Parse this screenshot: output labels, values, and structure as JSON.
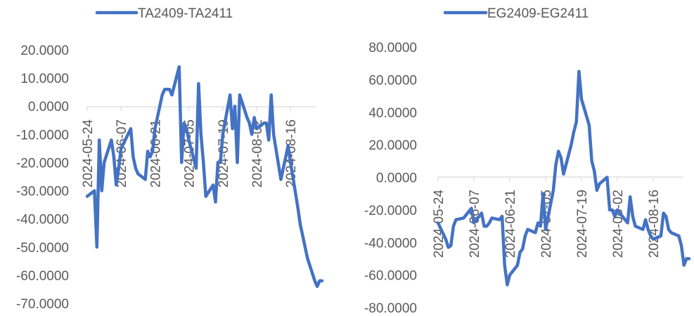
{
  "chart_data": [
    {
      "type": "line",
      "series": [
        {
          "name": "TA2409-TA2411",
          "color": "#4472C4",
          "points": [
            [
              "2024-05-24",
              -32
            ],
            [
              "2024-05-27",
              -30
            ],
            [
              "2024-05-28",
              -50
            ],
            [
              "2024-05-29",
              -12
            ],
            [
              "2024-05-30",
              -30
            ],
            [
              "2024-05-31",
              -20
            ],
            [
              "2024-06-03",
              -12
            ],
            [
              "2024-06-04",
              -18
            ],
            [
              "2024-06-05",
              -28
            ],
            [
              "2024-06-06",
              -22
            ],
            [
              "2024-06-07",
              -15
            ],
            [
              "2024-06-11",
              -8
            ],
            [
              "2024-06-12",
              -18
            ],
            [
              "2024-06-13",
              -22
            ],
            [
              "2024-06-14",
              -24
            ],
            [
              "2024-06-17",
              -26
            ],
            [
              "2024-06-18",
              -16
            ],
            [
              "2024-06-19",
              -18
            ],
            [
              "2024-06-20",
              -16
            ],
            [
              "2024-06-21",
              -8
            ],
            [
              "2024-06-24",
              4
            ],
            [
              "2024-06-25",
              6
            ],
            [
              "2024-06-26",
              6
            ],
            [
              "2024-06-27",
              6
            ],
            [
              "2024-06-28",
              4
            ],
            [
              "2024-07-01",
              14
            ],
            [
              "2024-07-02",
              -20
            ],
            [
              "2024-07-03",
              -6
            ],
            [
              "2024-07-04",
              -8
            ],
            [
              "2024-07-05",
              -12
            ],
            [
              "2024-07-08",
              -22
            ],
            [
              "2024-07-09",
              8
            ],
            [
              "2024-07-10",
              -10
            ],
            [
              "2024-07-11",
              -20
            ],
            [
              "2024-07-12",
              -32
            ],
            [
              "2024-07-15",
              -28
            ],
            [
              "2024-07-16",
              -34
            ],
            [
              "2024-07-17",
              -20
            ],
            [
              "2024-07-18",
              -20
            ],
            [
              "2024-07-19",
              -10
            ],
            [
              "2024-07-22",
              4
            ],
            [
              "2024-07-23",
              -8
            ],
            [
              "2024-07-24",
              0
            ],
            [
              "2024-07-25",
              -20
            ],
            [
              "2024-07-26",
              4
            ],
            [
              "2024-07-29",
              -4
            ],
            [
              "2024-07-30",
              -6
            ],
            [
              "2024-07-31",
              -10
            ],
            [
              "2024-08-01",
              -4
            ],
            [
              "2024-08-02",
              -8
            ],
            [
              "2024-08-05",
              -6
            ],
            [
              "2024-08-06",
              -6
            ],
            [
              "2024-08-07",
              -12
            ],
            [
              "2024-08-08",
              4
            ],
            [
              "2024-08-09",
              -10
            ],
            [
              "2024-08-12",
              -26
            ],
            [
              "2024-08-13",
              -22
            ],
            [
              "2024-08-14",
              -18
            ],
            [
              "2024-08-15",
              -14
            ],
            [
              "2024-08-16",
              -20
            ],
            [
              "2024-08-19",
              -36
            ],
            [
              "2024-08-20",
              -42
            ],
            [
              "2024-08-21",
              -46
            ],
            [
              "2024-08-22",
              -50
            ],
            [
              "2024-08-23",
              -54
            ],
            [
              "2024-08-26",
              -62
            ],
            [
              "2024-08-27",
              -64
            ],
            [
              "2024-08-28",
              -62
            ],
            [
              "2024-08-29",
              -62
            ]
          ]
        }
      ],
      "y_ticks": [
        "20.0000",
        "10.0000",
        "0.0000",
        "-10.0000",
        "-20.0000",
        "-30.0000",
        "-40.0000",
        "-50.0000",
        "-60.0000",
        "-70.0000"
      ],
      "ylim": [
        -70,
        20
      ],
      "x_ticks": [
        "2024-05-24",
        "2024-06-07",
        "2024-06-21",
        "2024-07-05",
        "2024-07-19",
        "2024-08-02",
        "2024-08-16"
      ],
      "grid": false,
      "legend_position": "top"
    },
    {
      "type": "line",
      "series": [
        {
          "name": "EG2409-EG2411",
          "color": "#4472C4",
          "points": [
            [
              "2024-05-24",
              -28
            ],
            [
              "2024-05-27",
              -38
            ],
            [
              "2024-05-28",
              -43
            ],
            [
              "2024-05-29",
              -42
            ],
            [
              "2024-05-30",
              -30
            ],
            [
              "2024-05-31",
              -26
            ],
            [
              "2024-06-03",
              -25
            ],
            [
              "2024-06-04",
              -23
            ],
            [
              "2024-06-05",
              -21
            ],
            [
              "2024-06-06",
              -19
            ],
            [
              "2024-06-07",
              -28
            ],
            [
              "2024-06-10",
              -22
            ],
            [
              "2024-06-11",
              -30
            ],
            [
              "2024-06-12",
              -30
            ],
            [
              "2024-06-13",
              -28
            ],
            [
              "2024-06-14",
              -25
            ],
            [
              "2024-06-17",
              -26
            ],
            [
              "2024-06-18",
              -24
            ],
            [
              "2024-06-19",
              -54
            ],
            [
              "2024-06-20",
              -66
            ],
            [
              "2024-06-21",
              -60
            ],
            [
              "2024-06-24",
              -54
            ],
            [
              "2024-06-25",
              -46
            ],
            [
              "2024-06-26",
              -44
            ],
            [
              "2024-06-27",
              -36
            ],
            [
              "2024-06-28",
              -32
            ],
            [
              "2024-07-01",
              -34
            ],
            [
              "2024-07-02",
              -28
            ],
            [
              "2024-07-03",
              -30
            ],
            [
              "2024-07-04",
              -10
            ],
            [
              "2024-07-05",
              -32
            ],
            [
              "2024-07-08",
              -8
            ],
            [
              "2024-07-09",
              8
            ],
            [
              "2024-07-10",
              16
            ],
            [
              "2024-07-11",
              12
            ],
            [
              "2024-07-12",
              2
            ],
            [
              "2024-07-15",
              20
            ],
            [
              "2024-07-16",
              28
            ],
            [
              "2024-07-17",
              34
            ],
            [
              "2024-07-18",
              65
            ],
            [
              "2024-07-19",
              48
            ],
            [
              "2024-07-22",
              32
            ],
            [
              "2024-07-23",
              10
            ],
            [
              "2024-07-24",
              4
            ],
            [
              "2024-07-25",
              -8
            ],
            [
              "2024-07-26",
              -4
            ],
            [
              "2024-07-29",
              0
            ],
            [
              "2024-07-30",
              -20
            ],
            [
              "2024-07-31",
              -20
            ],
            [
              "2024-08-01",
              -24
            ],
            [
              "2024-08-02",
              -20
            ],
            [
              "2024-08-05",
              -26
            ],
            [
              "2024-08-06",
              -28
            ],
            [
              "2024-08-07",
              -12
            ],
            [
              "2024-08-08",
              -24
            ],
            [
              "2024-08-09",
              -30
            ],
            [
              "2024-08-12",
              -32
            ],
            [
              "2024-08-13",
              -26
            ],
            [
              "2024-08-14",
              -32
            ],
            [
              "2024-08-15",
              -36
            ],
            [
              "2024-08-16",
              -38
            ],
            [
              "2024-08-19",
              -36
            ],
            [
              "2024-08-20",
              -22
            ],
            [
              "2024-08-21",
              -24
            ],
            [
              "2024-08-22",
              -32
            ],
            [
              "2024-08-23",
              -34
            ],
            [
              "2024-08-26",
              -36
            ],
            [
              "2024-08-27",
              -42
            ],
            [
              "2024-08-28",
              -54
            ],
            [
              "2024-08-29",
              -50
            ],
            [
              "2024-08-30",
              -50
            ]
          ]
        }
      ],
      "y_ticks": [
        "80.0000",
        "60.0000",
        "40.0000",
        "20.0000",
        "0.0000",
        "-20.0000",
        "-40.0000",
        "-60.0000",
        "-80.0000"
      ],
      "ylim": [
        -80,
        80
      ],
      "x_ticks": [
        "2024-05-24",
        "2024-06-07",
        "2024-06-21",
        "2024-07-05",
        "2024-07-19",
        "2024-08-02",
        "2024-08-16"
      ],
      "grid": false,
      "legend_position": "top"
    }
  ]
}
